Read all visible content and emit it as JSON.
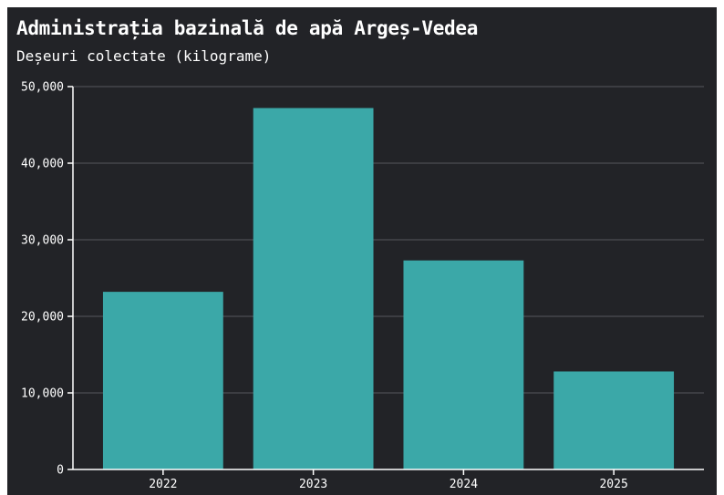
{
  "chart_data": {
    "type": "bar",
    "title": "Administrația bazinală de apă Argeș-Vedea",
    "subtitle": "Deșeuri colectate (kilograme)",
    "xlabel": "",
    "ylabel": "",
    "categories": [
      "2022",
      "2023",
      "2024",
      "2025"
    ],
    "values": [
      23200,
      47200,
      27300,
      12800
    ],
    "ylim": [
      0,
      50000
    ],
    "yticks": [
      0,
      10000,
      20000,
      30000,
      40000,
      50000
    ],
    "ytick_labels": [
      "0",
      "10,000",
      "20,000",
      "30,000",
      "40,000",
      "50,000"
    ],
    "grid": true,
    "legend": "none",
    "colors": {
      "background": "#222327",
      "bar": "#3ba8a8",
      "grid": "#55575c",
      "axis": "#ffffff",
      "text": "#ffffff"
    }
  }
}
